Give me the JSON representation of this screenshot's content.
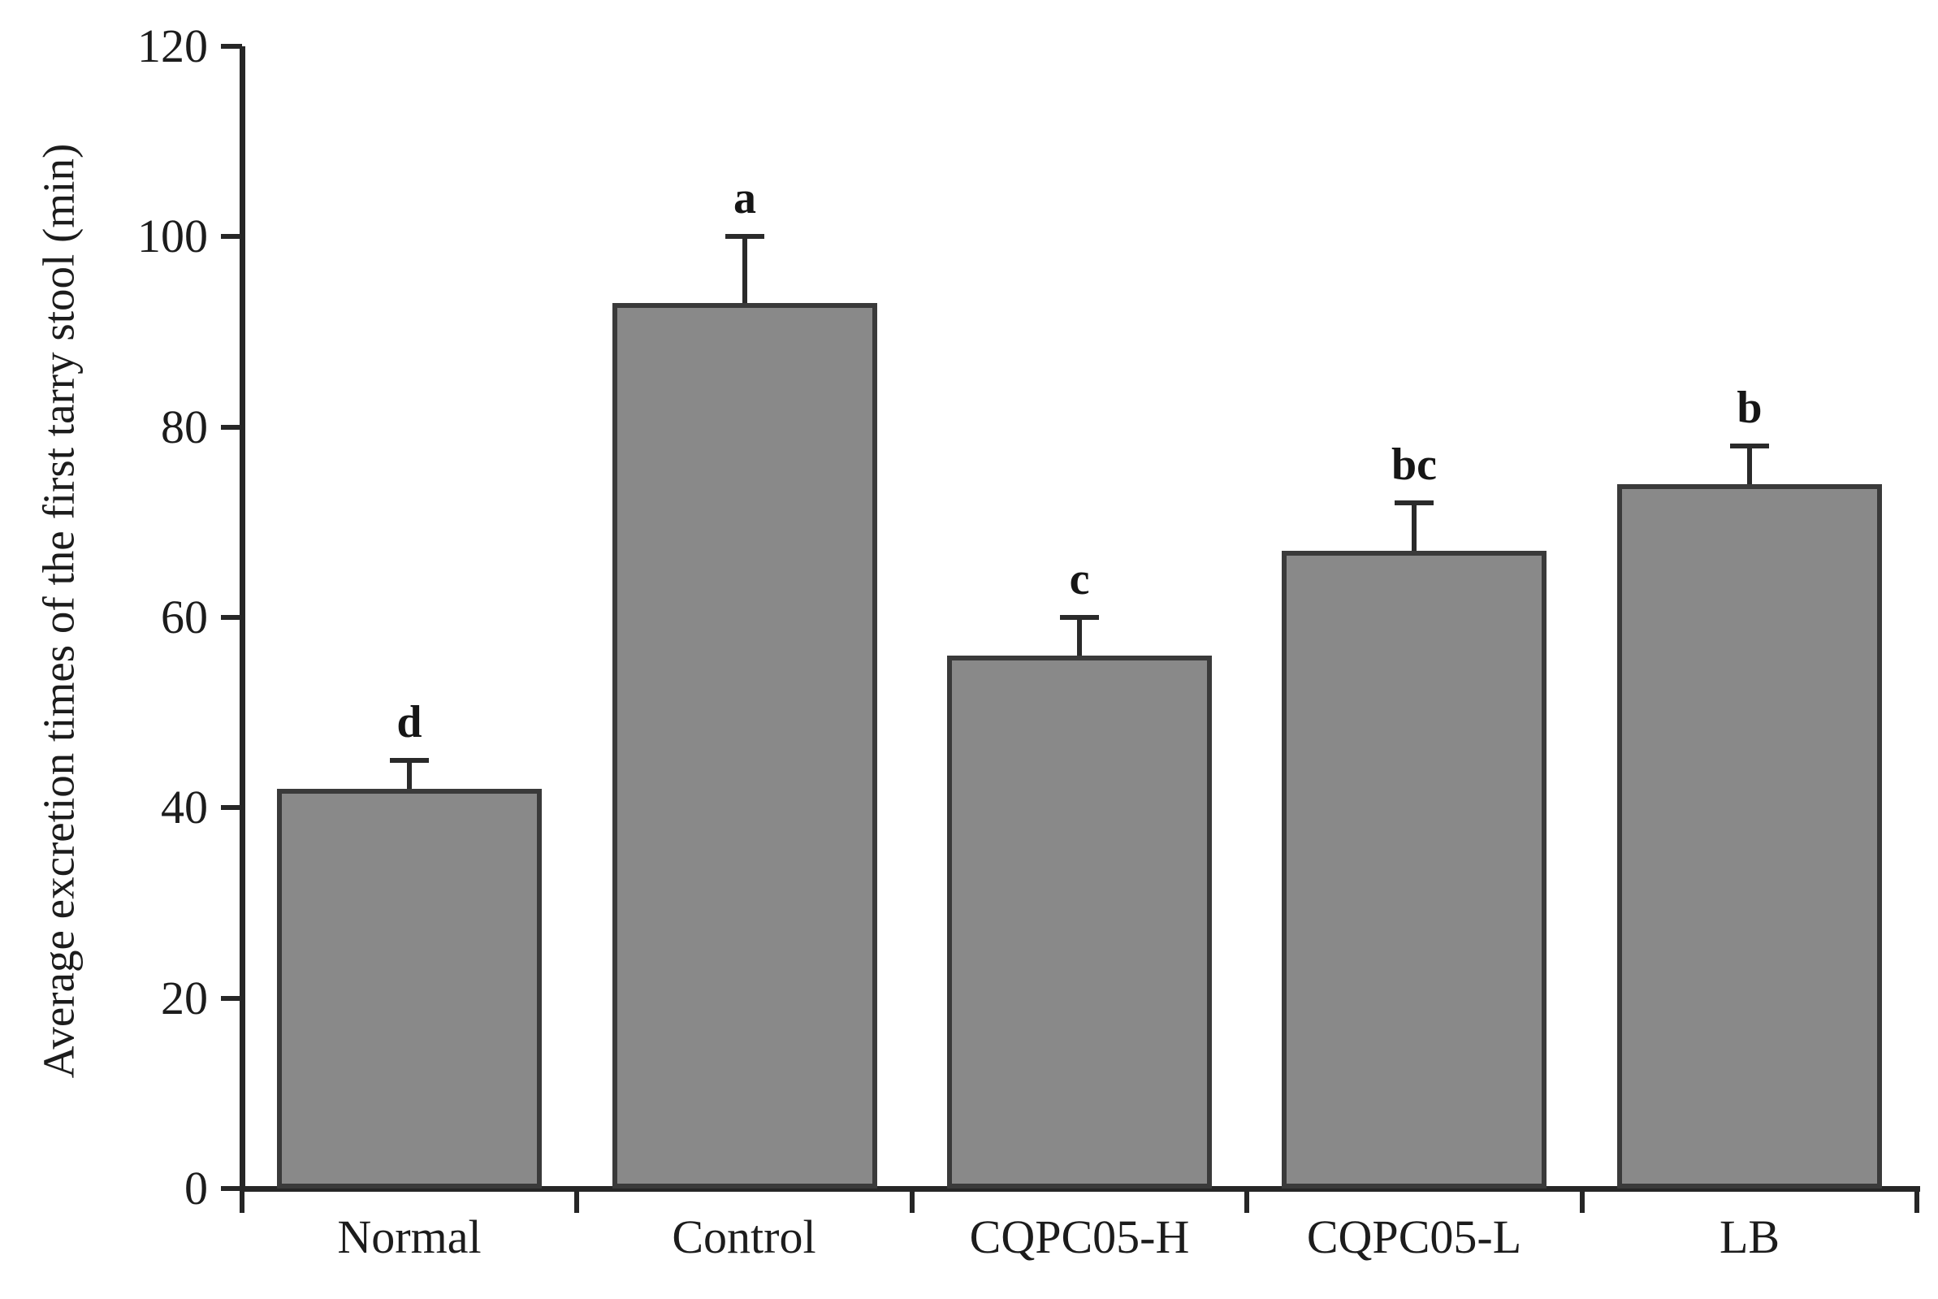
{
  "chart_data": {
    "type": "bar",
    "title": "",
    "xlabel": "",
    "ylabel": "Average excretion times of the first tarry stool (min)",
    "ylim": [
      0,
      120
    ],
    "yticks": [
      0,
      20,
      40,
      60,
      80,
      100,
      120
    ],
    "grid": false,
    "legend": "none",
    "categories": [
      "Normal",
      "Control",
      "CQPC05-H",
      "CQPC05-L",
      "LB"
    ],
    "values": [
      42,
      93,
      56,
      67,
      74
    ],
    "errors_plus": [
      3,
      7,
      4,
      5,
      4
    ],
    "significance_letters": [
      "d",
      "a",
      "c",
      "bc",
      "b"
    ],
    "bar_fill_color": "#898989",
    "bar_border_color": "#3a3a3a",
    "axis_color": "#262626",
    "text_color": "#1c1c1c",
    "background_color": "#ffffff"
  }
}
